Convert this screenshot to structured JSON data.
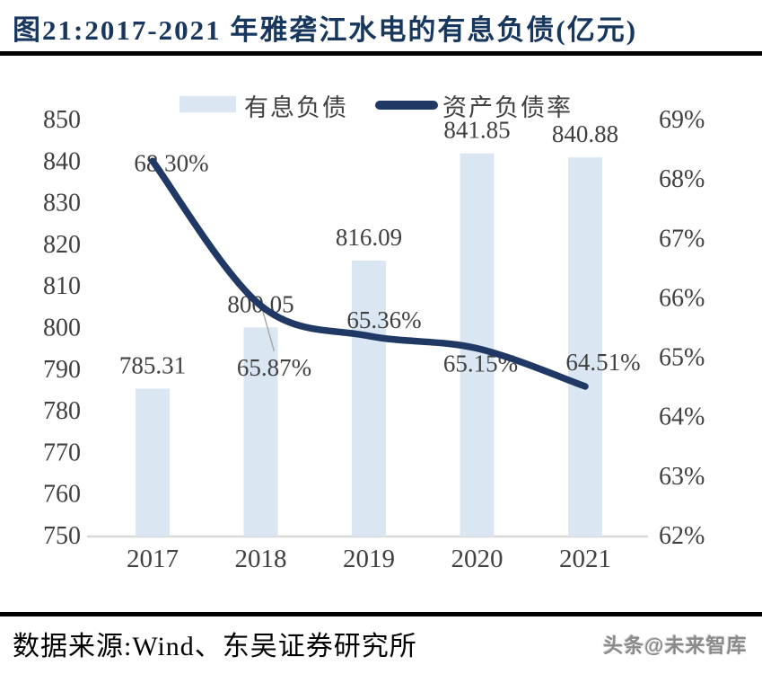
{
  "figure": {
    "title": "图21:2017-2021 年雅砻江水电的有息负债(亿元)",
    "source": "数据来源:Wind、东吴证券研究所",
    "watermark": "头条@未来智库"
  },
  "legend": {
    "bar_label": "有息负债",
    "line_label": "资产负债率"
  },
  "chart_data": {
    "type": "bar",
    "subtype": "combo-bar-line",
    "title": "2017-2021 年雅砻江水电的有息负债(亿元)",
    "categories": [
      "2017",
      "2018",
      "2019",
      "2020",
      "2021"
    ],
    "series": [
      {
        "name": "有息负债",
        "chart": "bar",
        "axis": "left",
        "unit": "亿元",
        "values": [
          785.31,
          800.05,
          816.09,
          841.85,
          840.88
        ],
        "labels": [
          "785.31",
          "800.05",
          "816.09",
          "841.85",
          "840.88"
        ]
      },
      {
        "name": "资产负债率",
        "chart": "line",
        "axis": "right",
        "unit": "%",
        "values": [
          68.3,
          65.87,
          65.36,
          65.15,
          64.51
        ],
        "labels": [
          "68.30%",
          "65.87%",
          "65.36%",
          "65.15%",
          "64.51%"
        ]
      }
    ],
    "left_axis": {
      "min": 750,
      "max": 850,
      "step": 10,
      "ticks": [
        "850",
        "840",
        "830",
        "820",
        "810",
        "800",
        "790",
        "780",
        "770",
        "760",
        "750"
      ]
    },
    "right_axis": {
      "min": 62,
      "max": 69,
      "step": 1,
      "ticks": [
        "69%",
        "68%",
        "67%",
        "66%",
        "65%",
        "64%",
        "63%",
        "62%"
      ]
    },
    "grid": false,
    "legend_position": "top",
    "colors": {
      "bar": "#dae6f2",
      "line": "#1f3864",
      "title": "#17375e",
      "labels": "#404040",
      "axis_line": "#d9d9d9",
      "leader_line": "#a6a6a6",
      "rule": "#000000"
    }
  }
}
